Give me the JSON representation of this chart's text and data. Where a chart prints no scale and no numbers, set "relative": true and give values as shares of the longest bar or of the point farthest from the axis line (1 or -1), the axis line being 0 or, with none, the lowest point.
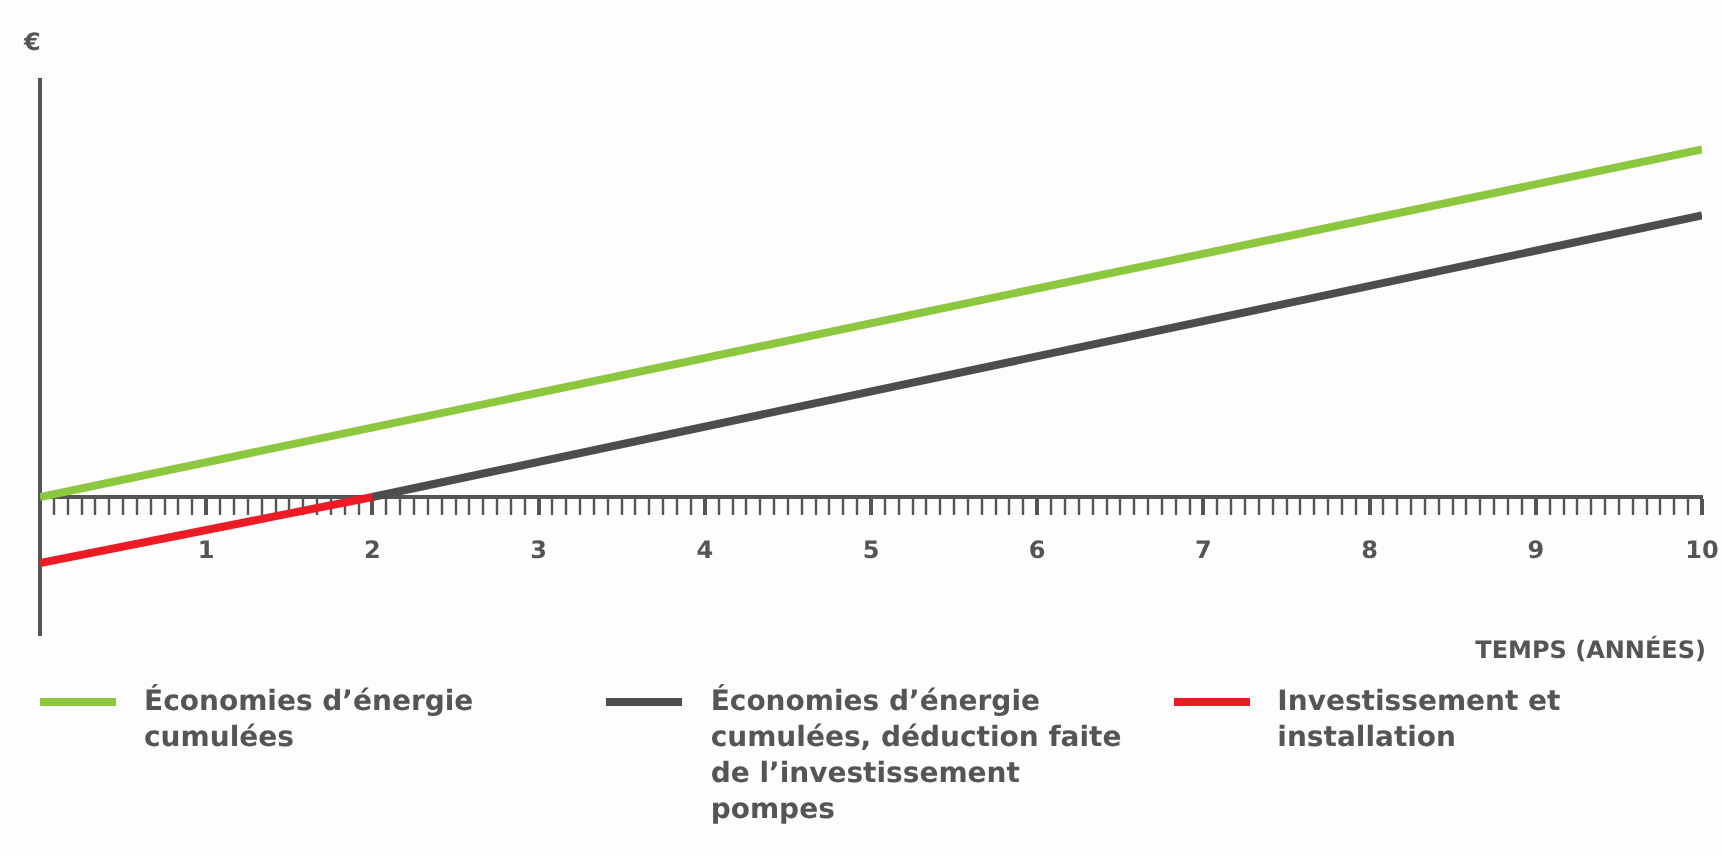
{
  "chart_data": {
    "type": "line",
    "relative": true,
    "ylabel": "€",
    "xlabel": "TEMPS (ANNÉES)",
    "xlim": [
      0,
      10
    ],
    "xticks": [
      {
        "value": 0,
        "label": null
      },
      1,
      2,
      3,
      4,
      5,
      6,
      7,
      8,
      9,
      10,
      {
        "value": 0.083,
        "label": null
      },
      {
        "value": 0.167,
        "label": null
      },
      {
        "value": 0.25,
        "label": null
      },
      {
        "value": 0.333,
        "label": null
      },
      {
        "value": 0.417,
        "label": null
      },
      {
        "value": 0.5,
        "label": null
      },
      {
        "value": 0.583,
        "label": null
      },
      {
        "value": 0.667,
        "label": null
      },
      {
        "value": 0.75,
        "label": null
      },
      {
        "value": 0.833,
        "label": null
      },
      {
        "value": 0.917,
        "label": null
      },
      {
        "value": 1.083,
        "label": null
      },
      {
        "value": 1.167,
        "label": null
      },
      {
        "value": 1.25,
        "label": null
      },
      {
        "value": 1.333,
        "label": null
      },
      {
        "value": 1.417,
        "label": null
      },
      {
        "value": 1.5,
        "label": null
      },
      {
        "value": 1.583,
        "label": null
      },
      {
        "value": 1.667,
        "label": null
      },
      {
        "value": 1.75,
        "label": null
      },
      {
        "value": 1.833,
        "label": null
      },
      {
        "value": 1.917,
        "label": null
      },
      {
        "value": 2.083,
        "label": null
      },
      {
        "value": 2.167,
        "label": null
      },
      {
        "value": 2.25,
        "label": null
      },
      {
        "value": 2.333,
        "label": null
      },
      {
        "value": 2.417,
        "label": null
      },
      {
        "value": 2.5,
        "label": null
      },
      {
        "value": 2.583,
        "label": null
      },
      {
        "value": 2.667,
        "label": null
      },
      {
        "value": 2.75,
        "label": null
      },
      {
        "value": 2.833,
        "label": null
      },
      {
        "value": 2.917,
        "label": null
      },
      {
        "value": 3.083,
        "label": null
      },
      {
        "value": 3.167,
        "label": null
      },
      {
        "value": 3.25,
        "label": null
      },
      {
        "value": 3.333,
        "label": null
      },
      {
        "value": 3.417,
        "label": null
      },
      {
        "value": 3.5,
        "label": null
      },
      {
        "value": 3.583,
        "label": null
      },
      {
        "value": 3.667,
        "label": null
      },
      {
        "value": 3.75,
        "label": null
      },
      {
        "value": 3.833,
        "label": null
      },
      {
        "value": 3.917,
        "label": null
      },
      {
        "value": 4.083,
        "label": null
      },
      {
        "value": 4.167,
        "label": null
      },
      {
        "value": 4.25,
        "label": null
      },
      {
        "value": 4.333,
        "label": null
      },
      {
        "value": 4.417,
        "label": null
      },
      {
        "value": 4.5,
        "label": null
      },
      {
        "value": 4.583,
        "label": null
      },
      {
        "value": 4.667,
        "label": null
      },
      {
        "value": 4.75,
        "label": null
      },
      {
        "value": 4.833,
        "label": null
      },
      {
        "value": 4.917,
        "label": null
      },
      {
        "value": 5.083,
        "label": null
      },
      {
        "value": 5.167,
        "label": null
      },
      {
        "value": 5.25,
        "label": null
      },
      {
        "value": 5.333,
        "label": null
      },
      {
        "value": 5.417,
        "label": null
      },
      {
        "value": 5.5,
        "label": null
      },
      {
        "value": 5.583,
        "label": null
      },
      {
        "value": 5.667,
        "label": null
      },
      {
        "value": 5.75,
        "label": null
      },
      {
        "value": 5.833,
        "label": null
      },
      {
        "value": 5.917,
        "label": null
      },
      {
        "value": 6.083,
        "label": null
      },
      {
        "value": 6.167,
        "label": null
      },
      {
        "value": 6.25,
        "label": null
      },
      {
        "value": 6.333,
        "label": null
      },
      {
        "value": 6.417,
        "label": null
      },
      {
        "value": 6.5,
        "label": null
      },
      {
        "value": 6.583,
        "label": null
      },
      {
        "value": 6.667,
        "label": null
      },
      {
        "value": 6.75,
        "label": null
      },
      {
        "value": 6.833,
        "label": null
      },
      {
        "value": 6.917,
        "label": null
      },
      {
        "value": 7.083,
        "label": null
      },
      {
        "value": 7.167,
        "label": null
      },
      {
        "value": 7.25,
        "label": null
      },
      {
        "value": 7.333,
        "label": null
      },
      {
        "value": 7.417,
        "label": null
      },
      {
        "value": 7.5,
        "label": null
      },
      {
        "value": 7.583,
        "label": null
      },
      {
        "value": 7.667,
        "label": null
      },
      {
        "value": 7.75,
        "label": null
      },
      {
        "value": 7.833,
        "label": null
      },
      {
        "value": 7.917,
        "label": null
      },
      {
        "value": 8.083,
        "label": null
      },
      {
        "value": 8.167,
        "label": null
      },
      {
        "value": 8.25,
        "label": null
      },
      {
        "value": 8.333,
        "label": null
      },
      {
        "value": 8.417,
        "label": null
      },
      {
        "value": 8.5,
        "label": null
      },
      {
        "value": 8.583,
        "label": null
      },
      {
        "value": 8.667,
        "label": null
      },
      {
        "value": 8.75,
        "label": null
      },
      {
        "value": 8.833,
        "label": null
      },
      {
        "value": 8.917,
        "label": null
      },
      {
        "value": 9.083,
        "label": null
      },
      {
        "value": 9.167,
        "label": null
      },
      {
        "value": 9.25,
        "label": null
      },
      {
        "value": 9.333,
        "label": null
      },
      {
        "value": 9.417,
        "label": null
      },
      {
        "value": 9.5,
        "label": null
      },
      {
        "value": 9.583,
        "label": null
      },
      {
        "value": 9.667,
        "label": null
      },
      {
        "value": 9.75,
        "label": null
      },
      {
        "value": 9.833,
        "label": null
      },
      {
        "value": 9.917,
        "label": null
      }
    ],
    "legend": "bottom",
    "marker": "none",
    "line_style": "solid",
    "series": [
      {
        "name": "Économies d’énergie cumulées",
        "color": "#8dc63f",
        "x": [
          0,
          10
        ],
        "values": [
          0,
          1
        ]
      },
      {
        "name": "Économies d’énergie cumulées, déduction faite de l’investissement pompes",
        "color": "#4d4d4f",
        "x": [
          2,
          10
        ],
        "values": [
          0,
          0.81
        ]
      },
      {
        "name": "Investissement et installation",
        "color": "#ed1c24",
        "x": [
          0,
          2
        ],
        "values": [
          -0.19,
          0
        ]
      }
    ]
  }
}
